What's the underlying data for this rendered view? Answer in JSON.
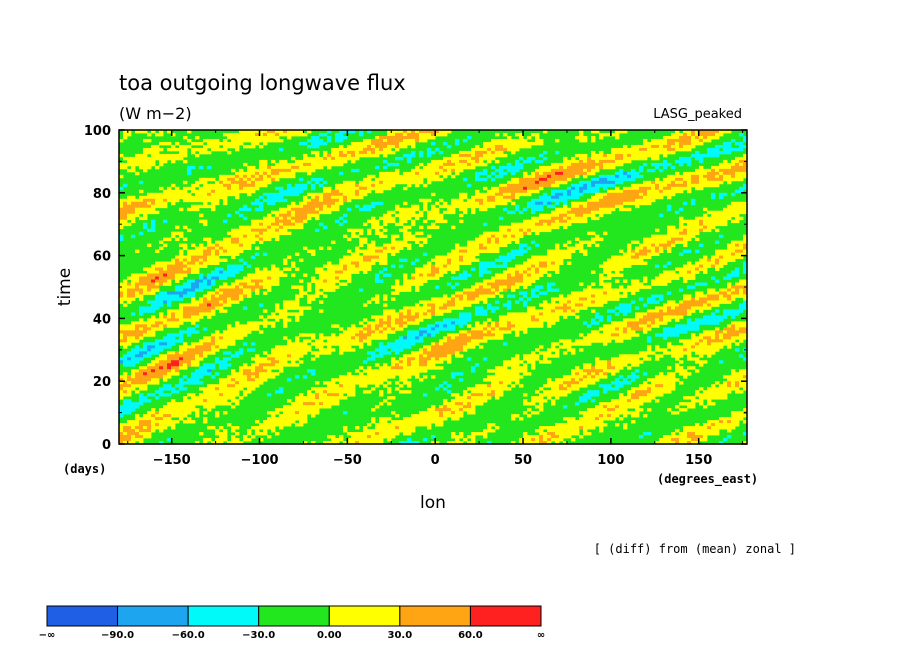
{
  "chart_data": {
    "type": "heatmap",
    "title": "toa outgoing longwave flux",
    "units": "(W m−2)",
    "dataset_label": "LASG_peaked",
    "xlabel": "lon",
    "xunits": "(degrees_east)",
    "ylabel": "time",
    "yunits": "(days)",
    "xlim": [
      -180,
      177.5
    ],
    "ylim": [
      0,
      100
    ],
    "xticks": [
      -150,
      -100,
      -50,
      0,
      50,
      100,
      150
    ],
    "xtick_labels": [
      "−150",
      "−100",
      "−50",
      "0",
      "50",
      "100",
      "150"
    ],
    "yticks": [
      0,
      20,
      40,
      60,
      80,
      100
    ],
    "ytick_labels": [
      "0",
      "20",
      "40",
      "60",
      "80",
      "100"
    ],
    "note": "[ (diff) from (mean) zonal ]",
    "colorbar": {
      "levels": [
        -90,
        -60,
        -30,
        0,
        30,
        60
      ],
      "level_labels": [
        "−∞",
        "−90.0",
        "−60.0",
        "−30.0",
        "0.00",
        "30.0",
        "60.0",
        "∞"
      ],
      "colors": [
        "#1f5fe6",
        "#1ea5f0",
        "#00fafa",
        "#22e61e",
        "#ffff00",
        "#ffa514",
        "#ff2020"
      ]
    },
    "field_description_colors": {
      "dominant": [
        "#22e61e",
        "#ffff00"
      ],
      "secondary": [
        "#00fafa",
        "#ffa514"
      ],
      "rare": [
        "#1ea5f0",
        "#ff2020"
      ]
    }
  }
}
